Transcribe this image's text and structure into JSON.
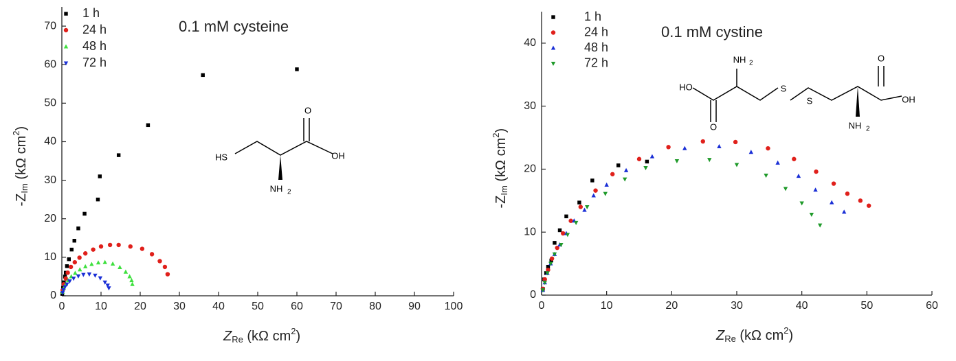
{
  "chart_data": [
    {
      "type": "scatter",
      "annotation": "0.1 mM cysteine",
      "legend": "upper left",
      "xlabel": {
        "main": "Z",
        "sub": "Re",
        "rest": " (kΩ cm",
        "sup": "2",
        "end": ")"
      },
      "ylabel": {
        "main": "-Z",
        "sub": "Im",
        "rest": " (kΩ cm",
        "sup": "2",
        "end": ")"
      },
      "xlim": [
        0,
        100
      ],
      "ylim": [
        0,
        75
      ],
      "xticks": [
        0,
        10,
        20,
        30,
        40,
        50,
        60,
        70,
        80,
        90,
        100
      ],
      "yticks": [
        0,
        10,
        20,
        30,
        40,
        50,
        60,
        70
      ],
      "structure_labels": [
        "HS",
        "O",
        "OH",
        "NH",
        "2"
      ],
      "series": [
        {
          "name": "1 h",
          "color": "#000000",
          "marker": "square",
          "x": [
            0.1,
            0.3,
            0.5,
            0.8,
            1.0,
            1.3,
            1.8,
            2.5,
            3.2,
            4.2,
            5.8,
            9.2,
            9.7,
            14.5,
            22,
            36,
            60
          ],
          "values": [
            0.5,
            2,
            3.5,
            5,
            6,
            7.7,
            9.5,
            12,
            14.3,
            17.5,
            21.3,
            25,
            31,
            36.5,
            44.3,
            57.3,
            58.8
          ]
        },
        {
          "name": "24 h",
          "color": "#e0201b",
          "marker": "circle",
          "x": [
            0.2,
            0.5,
            1,
            1.5,
            2.3,
            3.3,
            4.5,
            6,
            8,
            10,
            12.3,
            14.5,
            17.5,
            20.5,
            23,
            25,
            26.3,
            27
          ],
          "values": [
            1.5,
            3,
            4.5,
            6,
            7.5,
            8.7,
            9.9,
            11,
            12,
            12.8,
            13.2,
            13.2,
            12.8,
            12.2,
            10.8,
            9,
            7.5,
            5.6
          ]
        },
        {
          "name": "48 h",
          "color": "#3ee03e",
          "marker": "triangle-up",
          "x": [
            0.2,
            0.5,
            1,
            1.6,
            2.4,
            3.4,
            4.6,
            6,
            7.6,
            9.3,
            11,
            13,
            14.8,
            16.3,
            17.3,
            17.8,
            18
          ],
          "values": [
            1,
            2,
            3,
            4,
            5,
            5.9,
            6.8,
            7.6,
            8.2,
            8.6,
            8.7,
            8.3,
            7.4,
            6.2,
            5,
            4,
            3
          ]
        },
        {
          "name": "72 h",
          "color": "#1a2fd6",
          "marker": "triangle-down",
          "x": [
            0.2,
            0.4,
            0.8,
            1.3,
            2,
            3,
            4.2,
            5.5,
            7,
            8.5,
            9.8,
            11,
            11.7,
            12
          ],
          "values": [
            0.8,
            1.5,
            2.3,
            3,
            3.8,
            4.5,
            5.1,
            5.5,
            5.6,
            5.3,
            4.6,
            3.5,
            2.7,
            2
          ]
        }
      ]
    },
    {
      "type": "scatter",
      "annotation": "0.1 mM cystine",
      "legend": "upper left",
      "xlabel": {
        "main": "Z",
        "sub": "Re",
        "rest": " (kΩ cm",
        "sup": "2",
        "end": ")"
      },
      "ylabel": {
        "main": "-Z",
        "sub": "Im",
        "rest": " (kΩ cm",
        "sup": "2",
        "end": ")"
      },
      "xlim": [
        0,
        60
      ],
      "ylim": [
        0,
        45
      ],
      "xticks": [
        0,
        10,
        20,
        30,
        40,
        50,
        60
      ],
      "yticks": [
        0,
        10,
        20,
        30,
        40
      ],
      "structure_labels": [
        "HO",
        "O",
        "NH",
        "2",
        "S",
        "S",
        "O",
        "OH",
        "NH",
        "2"
      ],
      "series": [
        {
          "name": "1 h",
          "color": "#000000",
          "marker": "square",
          "x": [
            0.2,
            0.4,
            0.7,
            1,
            1.5,
            2,
            2.8,
            3.8,
            5.8,
            7.8,
            11.8,
            16.2
          ],
          "values": [
            1,
            2.5,
            3.5,
            4.5,
            5.5,
            8.3,
            10.3,
            12.5,
            14.7,
            18.2,
            20.6,
            21.2
          ]
        },
        {
          "name": "24 h",
          "color": "#e0201b",
          "marker": "circle",
          "x": [
            0.2,
            0.5,
            1,
            1.6,
            2.4,
            3.3,
            4.5,
            6,
            8.3,
            10.9,
            15,
            19.5,
            24.8,
            29.8,
            34.8,
            38.8,
            42.2,
            44.9,
            47,
            49,
            50.3
          ],
          "values": [
            1,
            2.5,
            4,
            5.8,
            7.5,
            9.8,
            11.8,
            14,
            16.6,
            19.2,
            21.6,
            23.5,
            24.4,
            24.3,
            23.3,
            21.6,
            19.6,
            17.7,
            16.1,
            15,
            14.2
          ]
        },
        {
          "name": "48 h",
          "color": "#1a2fd6",
          "marker": "triangle-up",
          "x": [
            0.2,
            0.5,
            0.9,
            1.4,
            2,
            2.8,
            3.8,
            5,
            6.6,
            8,
            10,
            13,
            17,
            22,
            27.3,
            32.2,
            36.3,
            39.5,
            42.1,
            44.6,
            46.5
          ],
          "values": [
            0.8,
            2,
            3.5,
            5,
            6.5,
            8,
            9.8,
            11.8,
            13.5,
            15.8,
            17.5,
            19.8,
            22,
            23.3,
            23.6,
            22.7,
            21,
            18.9,
            16.7,
            14.7,
            13.2
          ]
        },
        {
          "name": "72 h",
          "color": "#1f9a2a",
          "marker": "triangle-down",
          "x": [
            0.2,
            0.5,
            0.9,
            1.4,
            2,
            3,
            4,
            5.3,
            7,
            9.8,
            12.8,
            16,
            20.8,
            25.8,
            30,
            34.5,
            37.5,
            40,
            41.5,
            42.8
          ],
          "values": [
            0.8,
            2,
            3.5,
            5,
            6.5,
            8,
            9.6,
            11.5,
            14,
            16.1,
            18.4,
            20.2,
            21.3,
            21.5,
            20.7,
            19,
            16.9,
            14.6,
            12.8,
            11.1
          ]
        }
      ]
    }
  ]
}
